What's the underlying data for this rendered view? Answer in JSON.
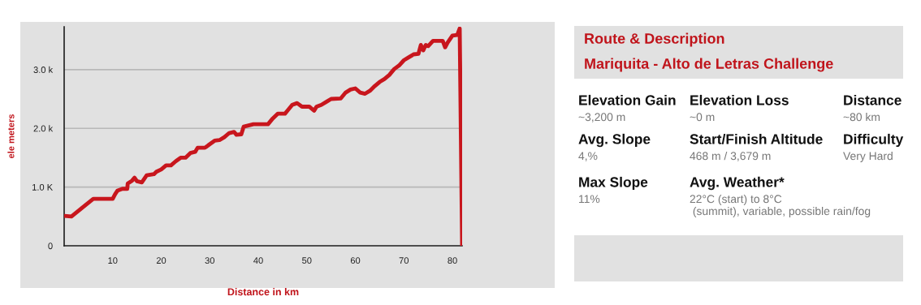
{
  "chart_data": [
    {
      "type": "line",
      "xlabel": "Distance in km",
      "ylabel": "ele meters",
      "x": [
        0,
        1.5,
        6,
        10,
        10.5,
        11,
        12,
        13,
        13.1,
        14,
        14.5,
        15,
        16,
        17,
        18.5,
        19,
        20,
        21,
        22,
        23,
        24,
        25,
        26,
        27,
        27.5,
        29,
        30,
        31,
        32,
        33,
        34,
        35,
        35.5,
        36.5,
        37,
        39,
        42,
        43,
        44,
        45.5,
        46,
        47,
        48,
        49,
        50.5,
        51.5,
        52,
        53,
        54,
        55,
        57,
        58,
        59,
        60,
        61,
        62,
        63,
        64,
        65,
        66,
        67,
        68,
        69,
        70,
        71,
        72,
        73,
        73.5,
        74,
        74.5,
        75,
        76,
        78,
        78.5,
        79,
        80,
        81,
        81.5,
        82
      ],
      "series": [
        {
          "color": "#c8161d",
          "values": [
            510,
            500,
            800,
            800,
            880,
            940,
            970,
            970,
            1060,
            1110,
            1160,
            1100,
            1080,
            1200,
            1220,
            1260,
            1300,
            1370,
            1370,
            1440,
            1500,
            1500,
            1580,
            1600,
            1670,
            1670,
            1730,
            1790,
            1800,
            1850,
            1920,
            1940,
            1890,
            1900,
            2030,
            2070,
            2070,
            2170,
            2250,
            2250,
            2300,
            2400,
            2430,
            2370,
            2370,
            2300,
            2370,
            2400,
            2450,
            2500,
            2510,
            2610,
            2660,
            2680,
            2610,
            2590,
            2640,
            2720,
            2790,
            2840,
            2910,
            3010,
            3070,
            3160,
            3210,
            3260,
            3270,
            3420,
            3330,
            3420,
            3400,
            3490,
            3490,
            3380,
            3460,
            3580,
            3590,
            3700,
            0
          ]
        }
      ],
      "xlim": [
        0,
        82
      ],
      "ylim": [
        0,
        3730
      ],
      "xticks": [
        10,
        20,
        30,
        40,
        50,
        60,
        70,
        80
      ],
      "yticks": [
        0,
        {
          "value": 1000,
          "label": "1.0 K"
        },
        {
          "value": 2000,
          "label": "2.0 k"
        },
        {
          "value": 3000,
          "label": "3.0 k"
        }
      ],
      "grid": "y"
    },
    {
      "type": "other",
      "title": "Route & Description",
      "subtitle": "Mariquita - Alto de Letras Challenge",
      "annotations": [
        "Elevation Gain",
        "~3,200 m",
        "Elevation Loss",
        "~0 m",
        "Distance",
        "~80 km",
        "Avg. Slope",
        "4,%",
        "Start/Finish Altitude",
        "468 m / 3,679 m",
        "Difficulty",
        "Very Hard",
        "Max Slope",
        "11%",
        "Avg. Weather*",
        "22°C (start) to 8°C\n (summit), variable, possible rain/fog"
      ]
    }
  ]
}
